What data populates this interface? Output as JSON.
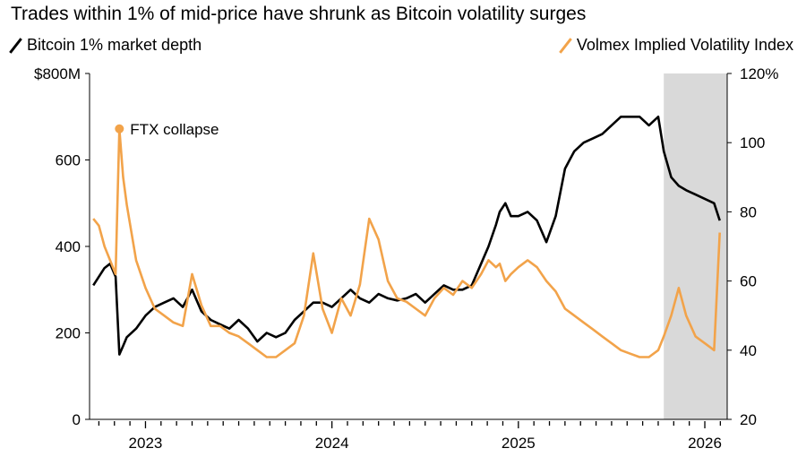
{
  "title": "Trades within 1% of mid-price have shrunk as Bitcoin volatility surges",
  "legend": {
    "left_label": "Bitcoin 1% market depth",
    "right_label": "Volmex Implied Volatility Index"
  },
  "colors": {
    "depth": "#000000",
    "vol": "#f2a34a",
    "shade": "#d9d9d9"
  },
  "chart_data": {
    "type": "line",
    "title": "Trades within 1% of mid-price have shrunk as Bitcoin volatility surges",
    "left_axis": {
      "ticks": [
        "0",
        "200",
        "400",
        "600",
        "$800M"
      ],
      "values": [
        0,
        200,
        400,
        600,
        800
      ],
      "ylim": [
        0,
        800
      ]
    },
    "right_axis": {
      "ticks": [
        "20",
        "40",
        "60",
        "80",
        "100",
        "120%"
      ],
      "values": [
        20,
        40,
        60,
        80,
        100,
        120
      ],
      "ylim": [
        20,
        120
      ]
    },
    "x_labels": [
      "2023",
      "2024",
      "2025",
      "2026"
    ],
    "x_label_positions": [
      2023.0,
      2024.0,
      2025.0,
      2026.0
    ],
    "xlim": [
      2022.7,
      2026.12
    ],
    "shaded_range": [
      2025.78,
      2026.12
    ],
    "annotation": {
      "text": "FTX collapse",
      "x": 2022.86,
      "y": 104
    },
    "series": [
      {
        "name": "Bitcoin 1% market depth",
        "axis": "left",
        "x": [
          2022.72,
          2022.75,
          2022.78,
          2022.81,
          2022.84,
          2022.86,
          2022.88,
          2022.9,
          2022.95,
          2023.0,
          2023.05,
          2023.1,
          2023.15,
          2023.2,
          2023.25,
          2023.3,
          2023.35,
          2023.4,
          2023.45,
          2023.5,
          2023.55,
          2023.6,
          2023.65,
          2023.7,
          2023.75,
          2023.8,
          2023.85,
          2023.9,
          2023.95,
          2024.0,
          2024.05,
          2024.1,
          2024.15,
          2024.2,
          2024.25,
          2024.3,
          2024.35,
          2024.4,
          2024.45,
          2024.5,
          2024.55,
          2024.6,
          2024.65,
          2024.7,
          2024.75,
          2024.8,
          2024.84,
          2024.88,
          2024.9,
          2024.93,
          2024.96,
          2025.0,
          2025.05,
          2025.1,
          2025.15,
          2025.2,
          2025.25,
          2025.3,
          2025.35,
          2025.4,
          2025.45,
          2025.5,
          2025.55,
          2025.6,
          2025.65,
          2025.7,
          2025.75,
          2025.78,
          2025.82,
          2025.86,
          2025.9,
          2025.95,
          2026.0,
          2026.05,
          2026.08
        ],
        "y": [
          310,
          330,
          350,
          360,
          330,
          150,
          170,
          190,
          210,
          240,
          260,
          270,
          280,
          260,
          300,
          250,
          230,
          220,
          210,
          230,
          210,
          180,
          200,
          190,
          200,
          230,
          250,
          270,
          270,
          260,
          280,
          300,
          280,
          270,
          290,
          280,
          275,
          280,
          290,
          270,
          290,
          310,
          300,
          300,
          310,
          360,
          400,
          450,
          480,
          500,
          470,
          470,
          480,
          460,
          410,
          470,
          580,
          620,
          640,
          650,
          660,
          680,
          700,
          700,
          700,
          680,
          700,
          620,
          560,
          540,
          530,
          520,
          510,
          500,
          460
        ]
      },
      {
        "name": "Volmex Implied Volatility Index",
        "axis": "right",
        "x": [
          2022.72,
          2022.75,
          2022.78,
          2022.81,
          2022.84,
          2022.86,
          2022.88,
          2022.9,
          2022.95,
          2023.0,
          2023.05,
          2023.1,
          2023.15,
          2023.2,
          2023.25,
          2023.3,
          2023.35,
          2023.4,
          2023.45,
          2023.5,
          2023.55,
          2023.6,
          2023.65,
          2023.7,
          2023.75,
          2023.8,
          2023.85,
          2023.9,
          2023.95,
          2024.0,
          2024.05,
          2024.1,
          2024.15,
          2024.2,
          2024.25,
          2024.3,
          2024.35,
          2024.4,
          2024.45,
          2024.5,
          2024.55,
          2024.6,
          2024.65,
          2024.7,
          2024.75,
          2024.8,
          2024.84,
          2024.88,
          2024.9,
          2024.93,
          2024.96,
          2025.0,
          2025.05,
          2025.1,
          2025.15,
          2025.2,
          2025.25,
          2025.3,
          2025.35,
          2025.4,
          2025.45,
          2025.5,
          2025.55,
          2025.6,
          2025.65,
          2025.7,
          2025.75,
          2025.78,
          2025.82,
          2025.86,
          2025.9,
          2025.95,
          2026.0,
          2026.05,
          2026.08
        ],
        "y": [
          78,
          76,
          70,
          66,
          62,
          104,
          90,
          82,
          66,
          58,
          52,
          50,
          48,
          47,
          62,
          53,
          47,
          47,
          45,
          44,
          42,
          40,
          38,
          38,
          40,
          42,
          50,
          68,
          52,
          45,
          55,
          50,
          59,
          78,
          72,
          60,
          55,
          54,
          52,
          50,
          55,
          58,
          56,
          60,
          58,
          62,
          66,
          64,
          65,
          60,
          62,
          64,
          66,
          64,
          60,
          57,
          52,
          50,
          48,
          46,
          44,
          42,
          40,
          39,
          38,
          38,
          40,
          44,
          50,
          58,
          50,
          44,
          42,
          40,
          74
        ]
      }
    ]
  }
}
